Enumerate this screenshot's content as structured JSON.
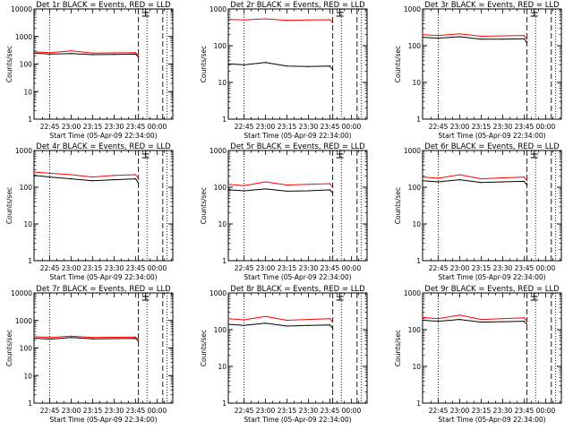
{
  "chart_data": [
    {
      "type": "line",
      "title": "Det 1r BLACK = Events, RED = LLD",
      "ylabel": "Counts/sec",
      "xlabel": "Start Time (05-Apr-09 22:34:00)",
      "yscale": "log",
      "ylim": [
        1,
        10000
      ],
      "y_ticks": [
        "1",
        "10",
        "100",
        "1000",
        "10000"
      ],
      "x_ticks": [
        "22:45",
        "23:00",
        "23:15",
        "23:30",
        "23:45",
        "00:00"
      ],
      "x": [
        "22:34",
        "22:45",
        "23:00",
        "23:15",
        "23:30",
        "23:45",
        "23:47"
      ],
      "series": [
        {
          "name": "Events",
          "color": "#000000",
          "values": [
            250,
            230,
            240,
            220,
            225,
            230,
            180
          ]
        },
        {
          "name": "LLD",
          "color": "#ff0000",
          "values": [
            280,
            260,
            300,
            250,
            255,
            260,
            200
          ]
        }
      ]
    },
    {
      "type": "line",
      "title": "Det 2r BLACK = Events, RED = LLD",
      "ylabel": "Counts/sec",
      "xlabel": "Start Time (05-Apr-09 22:34:00)",
      "yscale": "log",
      "ylim": [
        1,
        1000
      ],
      "y_ticks": [
        "1",
        "10",
        "100",
        "1000"
      ],
      "x_ticks": [
        "22:45",
        "23:00",
        "23:15",
        "23:30",
        "23:45",
        "00:00"
      ],
      "x": [
        "22:34",
        "22:45",
        "23:00",
        "23:15",
        "23:30",
        "23:45",
        "23:47"
      ],
      "series": [
        {
          "name": "Events",
          "color": "#000000",
          "values": [
            32,
            30,
            35,
            28,
            27,
            28,
            22
          ]
        },
        {
          "name": "LLD",
          "color": "#ff0000",
          "values": [
            520,
            500,
            540,
            490,
            500,
            510,
            420
          ]
        }
      ]
    },
    {
      "type": "line",
      "title": "Det 3r BLACK = Events, RED = LLD",
      "ylabel": "Counts/sec",
      "xlabel": "Start Time (05-Apr-09 22:34:00)",
      "yscale": "log",
      "ylim": [
        1,
        1000
      ],
      "y_ticks": [
        "1",
        "10",
        "100",
        "1000"
      ],
      "x_ticks": [
        "22:45",
        "23:00",
        "23:15",
        "23:30",
        "23:45",
        "00:00"
      ],
      "x": [
        "22:34",
        "22:45",
        "23:00",
        "23:15",
        "23:30",
        "23:45",
        "23:47"
      ],
      "series": [
        {
          "name": "Events",
          "color": "#000000",
          "values": [
            170,
            160,
            175,
            150,
            150,
            155,
            120
          ]
        },
        {
          "name": "LLD",
          "color": "#ff0000",
          "values": [
            200,
            190,
            210,
            180,
            185,
            190,
            150
          ]
        }
      ]
    },
    {
      "type": "line",
      "title": "Det 4r BLACK = Events, RED = LLD",
      "ylabel": "Counts/sec",
      "xlabel": "Start Time (05-Apr-09 22:34:00)",
      "yscale": "log",
      "ylim": [
        1,
        1000
      ],
      "y_ticks": [
        "1",
        "10",
        "100",
        "1000"
      ],
      "x_ticks": [
        "22:45",
        "23:00",
        "23:15",
        "23:30",
        "23:45",
        "00:00"
      ],
      "x": [
        "22:34",
        "22:45",
        "23:00",
        "23:15",
        "23:30",
        "23:45",
        "23:47"
      ],
      "series": [
        {
          "name": "Events",
          "color": "#000000",
          "values": [
            210,
            190,
            170,
            150,
            160,
            170,
            130
          ]
        },
        {
          "name": "LLD",
          "color": "#ff0000",
          "values": [
            260,
            240,
            220,
            190,
            210,
            220,
            170
          ]
        }
      ]
    },
    {
      "type": "line",
      "title": "Det 5r BLACK = Events, RED = LLD",
      "ylabel": "Counts/sec",
      "xlabel": "Start Time (05-Apr-09 22:34:00)",
      "yscale": "log",
      "ylim": [
        1,
        1000
      ],
      "y_ticks": [
        "1",
        "10",
        "100",
        "1000"
      ],
      "x_ticks": [
        "22:45",
        "23:00",
        "23:15",
        "23:30",
        "23:45",
        "00:00"
      ],
      "x": [
        "22:34",
        "22:45",
        "23:00",
        "23:15",
        "23:30",
        "23:45",
        "23:47"
      ],
      "series": [
        {
          "name": "Events",
          "color": "#000000",
          "values": [
            85,
            80,
            90,
            78,
            80,
            85,
            70
          ]
        },
        {
          "name": "LLD",
          "color": "#ff0000",
          "values": [
            120,
            110,
            140,
            115,
            120,
            125,
            100
          ]
        }
      ]
    },
    {
      "type": "line",
      "title": "Det 6r BLACK = Events, RED = LLD",
      "ylabel": "Counts/sec",
      "xlabel": "Start Time (05-Apr-09 22:34:00)",
      "yscale": "log",
      "ylim": [
        1,
        1000
      ],
      "y_ticks": [
        "1",
        "10",
        "100",
        "1000"
      ],
      "x_ticks": [
        "22:45",
        "23:00",
        "23:15",
        "23:30",
        "23:45",
        "00:00"
      ],
      "x": [
        "22:34",
        "22:45",
        "23:00",
        "23:15",
        "23:30",
        "23:45",
        "23:47"
      ],
      "series": [
        {
          "name": "Events",
          "color": "#000000",
          "values": [
            150,
            140,
            160,
            135,
            140,
            145,
            115
          ]
        },
        {
          "name": "LLD",
          "color": "#ff0000",
          "values": [
            190,
            175,
            220,
            170,
            180,
            190,
            150
          ]
        }
      ]
    },
    {
      "type": "line",
      "title": "Det 7r BLACK = Events, RED = LLD",
      "ylabel": "Counts/sec",
      "xlabel": "Start Time (05-Apr-09 22:34:00)",
      "yscale": "log",
      "ylim": [
        1,
        10000
      ],
      "y_ticks": [
        "1",
        "10",
        "100",
        "1000",
        "10000"
      ],
      "x_ticks": [
        "22:45",
        "23:00",
        "23:15",
        "23:30",
        "23:45",
        "00:00"
      ],
      "x": [
        "22:34",
        "22:45",
        "23:00",
        "23:15",
        "23:30",
        "23:45",
        "23:47"
      ],
      "series": [
        {
          "name": "Events",
          "color": "#000000",
          "values": [
            230,
            210,
            240,
            215,
            220,
            225,
            180
          ]
        },
        {
          "name": "LLD",
          "color": "#ff0000",
          "values": [
            260,
            240,
            270,
            240,
            245,
            250,
            200
          ]
        }
      ]
    },
    {
      "type": "line",
      "title": "Det 8r BLACK = Events, RED = LLD",
      "ylabel": "Counts/sec",
      "xlabel": "Start Time (05-Apr-09 22:34:00)",
      "yscale": "log",
      "ylim": [
        1,
        1000
      ],
      "y_ticks": [
        "1",
        "10",
        "100",
        "1000"
      ],
      "x_ticks": [
        "22:45",
        "23:00",
        "23:15",
        "23:30",
        "23:45",
        "00:00"
      ],
      "x": [
        "22:34",
        "22:45",
        "23:00",
        "23:15",
        "23:30",
        "23:45",
        "23:47"
      ],
      "series": [
        {
          "name": "Events",
          "color": "#000000",
          "values": [
            140,
            130,
            150,
            125,
            130,
            135,
            110
          ]
        },
        {
          "name": "LLD",
          "color": "#ff0000",
          "values": [
            200,
            185,
            230,
            180,
            190,
            200,
            160
          ]
        }
      ]
    },
    {
      "type": "line",
      "title": "Det 9r BLACK = Events, RED = LLD",
      "ylabel": "Counts/sec",
      "xlabel": "Start Time (05-Apr-09 22:34:00)",
      "yscale": "log",
      "ylim": [
        1,
        1000
      ],
      "y_ticks": [
        "1",
        "10",
        "100",
        "1000"
      ],
      "x_ticks": [
        "22:45",
        "23:00",
        "23:15",
        "23:30",
        "23:45",
        "00:00"
      ],
      "x": [
        "22:34",
        "22:45",
        "23:00",
        "23:15",
        "23:30",
        "23:45",
        "23:47"
      ],
      "series": [
        {
          "name": "Events",
          "color": "#000000",
          "values": [
            180,
            170,
            190,
            160,
            165,
            170,
            140
          ]
        },
        {
          "name": "LLD",
          "color": "#ff0000",
          "values": [
            215,
            200,
            250,
            190,
            200,
            210,
            170
          ]
        }
      ]
    }
  ]
}
